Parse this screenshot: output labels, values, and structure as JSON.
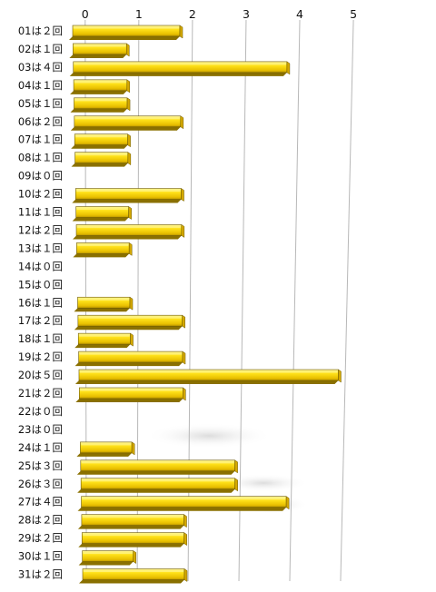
{
  "chart_data": {
    "type": "bar",
    "orientation": "horizontal",
    "style": "3d",
    "xlim": [
      0,
      5
    ],
    "grid": true,
    "x_ticks": [
      "0",
      "1",
      "2",
      "3",
      "4",
      "5"
    ],
    "categories": [
      "01は２回",
      "02は１回",
      "03は４回",
      "04は１回",
      "05は１回",
      "06は２回",
      "07は１回",
      "08は１回",
      "09は０回",
      "10は２回",
      "11は１回",
      "12は２回",
      "13は１回",
      "14は０回",
      "15は０回",
      "16は１回",
      "17は２回",
      "18は１回",
      "19は２回",
      "20は５回",
      "21は２回",
      "22は０回",
      "23は０回",
      "24は１回",
      "25は３回",
      "26は３回",
      "27は４回",
      "28は２回",
      "29は２回",
      "30は１回",
      "31は２回"
    ],
    "values": [
      2,
      1,
      4,
      1,
      1,
      2,
      1,
      1,
      0,
      2,
      1,
      2,
      1,
      0,
      0,
      1,
      2,
      1,
      2,
      5,
      2,
      0,
      0,
      1,
      3,
      3,
      4,
      2,
      2,
      1,
      2
    ],
    "colors": {
      "bar_top": "#fff27a",
      "bar_face": "#f2cc00",
      "bar_shadow": "#8a7000",
      "bar_outline": "#6e5a00",
      "grid": "#b8b8b8"
    }
  }
}
